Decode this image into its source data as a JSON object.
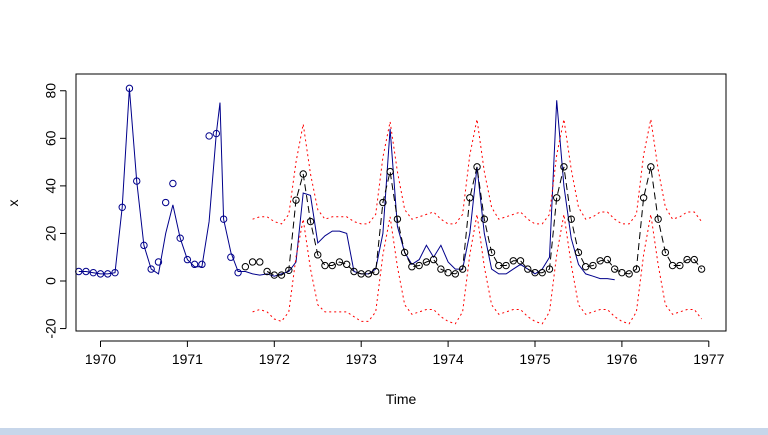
{
  "chart_data": {
    "type": "line",
    "title": "",
    "xlabel": "Time",
    "ylabel": "x",
    "xlim": [
      1969.75,
      1977.0
    ],
    "ylim": [
      -20,
      82
    ],
    "xticks": [
      "1970",
      "1971",
      "1972",
      "1973",
      "1974",
      "1975",
      "1976",
      "1977"
    ],
    "yticks": [
      "-20",
      "0",
      "20",
      "40",
      "60",
      "80"
    ],
    "grid": false,
    "legend": "none",
    "colors": {
      "observed_fitted": "#00008b",
      "forecast": "#000000",
      "interval": "#ff0000",
      "points": "#000000"
    },
    "series": [
      {
        "style": "points",
        "x": [
          1969.75,
          1969.833,
          1969.917,
          1970.0,
          1970.083,
          1970.167,
          1970.25,
          1970.333,
          1970.417,
          1970.5,
          1970.583,
          1970.667,
          1970.75,
          1970.833,
          1970.917,
          1971.0,
          1971.083,
          1971.167,
          1971.25,
          1971.333,
          1971.417,
          1971.5,
          1971.583,
          1971.667,
          1971.75,
          1971.833,
          1971.917,
          1972.0,
          1972.083,
          1972.167,
          1972.25,
          1972.333,
          1972.417,
          1972.5,
          1972.583,
          1972.667,
          1972.75,
          1972.833,
          1972.917,
          1973.0,
          1973.083,
          1973.167,
          1973.25,
          1973.333,
          1973.417,
          1973.5,
          1973.583,
          1973.667,
          1973.75,
          1973.833,
          1973.917,
          1974.0,
          1974.083,
          1974.167,
          1974.25,
          1974.333,
          1974.417,
          1974.5,
          1974.583,
          1974.667,
          1974.75,
          1974.833,
          1974.917,
          1975.0,
          1975.083,
          1975.167,
          1975.25,
          1975.333,
          1975.417,
          1975.5,
          1975.583,
          1975.667,
          1975.75,
          1975.833,
          1975.917,
          1976.0,
          1976.083,
          1976.167,
          1976.25,
          1976.333,
          1976.417,
          1976.5,
          1976.583,
          1976.667,
          1976.75,
          1976.833,
          1976.917
        ],
        "values": [
          4,
          4,
          3.5,
          3,
          3,
          3.5,
          31,
          81,
          42,
          15,
          5,
          8,
          33,
          41,
          18,
          9,
          7,
          7,
          61,
          62,
          26,
          10,
          3.5,
          6,
          8,
          8,
          4,
          2.5,
          2.5,
          4.5,
          34,
          45,
          25,
          11,
          6.5,
          6.5,
          8,
          7,
          4,
          3,
          3,
          4,
          33,
          46,
          26,
          12,
          6,
          6.5,
          8,
          9,
          5,
          3.5,
          3,
          5,
          35,
          48,
          26,
          12,
          6.5,
          6.5,
          8.5,
          8.5,
          5,
          3.5,
          3.5,
          5,
          35,
          48,
          26,
          12,
          6,
          6.5,
          8.5,
          9,
          5,
          3.5,
          3,
          5,
          35,
          48,
          26,
          12,
          6.5,
          6.5,
          9,
          9,
          5
        ]
      },
      {
        "name": "",
        "style": "solid",
        "color": "#00008b",
        "x": [
          1969.75,
          1969.833,
          1969.917,
          1970.0,
          1970.083,
          1970.167,
          1970.25,
          1970.333,
          1970.417,
          1970.5,
          1970.583,
          1970.667,
          1970.75,
          1970.833,
          1970.917,
          1971.0,
          1971.083,
          1971.167,
          1971.25,
          1971.333,
          1971.375,
          1971.417,
          1971.5,
          1971.583,
          1971.667,
          1971.75,
          1971.833,
          1971.917,
          1972.0,
          1972.083,
          1972.167,
          1972.25,
          1972.333,
          1972.417,
          1972.5,
          1972.583,
          1972.667,
          1972.75,
          1972.833,
          1972.917,
          1973.0,
          1973.083,
          1973.167,
          1973.25,
          1973.333,
          1973.417,
          1973.5,
          1973.583,
          1973.667,
          1973.75,
          1973.833,
          1973.917,
          1974.0,
          1974.083,
          1974.167,
          1974.25,
          1974.333,
          1974.417,
          1974.5,
          1974.583,
          1974.667,
          1974.75,
          1974.833,
          1974.917,
          1975.0,
          1975.083,
          1975.167,
          1975.25,
          1975.333,
          1975.417,
          1975.5,
          1975.583,
          1975.667,
          1975.75,
          1975.833,
          1975.917
        ],
        "values": [
          4,
          4,
          3.5,
          3,
          3,
          3.5,
          31,
          81,
          42,
          15,
          5,
          3,
          20,
          32,
          18,
          9,
          6,
          6,
          25,
          62,
          75,
          26,
          12,
          4,
          4,
          3,
          2.5,
          3,
          2,
          3,
          4,
          8,
          37,
          36,
          16,
          19,
          21,
          21,
          20,
          4,
          3,
          3,
          5,
          20,
          64,
          23,
          12,
          7,
          9,
          15,
          10,
          15,
          8,
          5,
          5,
          20,
          48,
          20,
          5,
          3,
          3,
          5,
          7,
          5,
          3,
          5,
          10,
          76,
          40,
          18,
          7,
          3,
          2,
          1,
          1,
          0.5
        ]
      },
      {
        "name": "",
        "style": "dashed",
        "color": "#000000",
        "x": [
          1971.917,
          1972.0,
          1972.083,
          1972.167,
          1972.25,
          1972.333,
          1972.417,
          1972.5,
          1972.583,
          1972.667,
          1972.75,
          1972.833,
          1972.917,
          1973.0,
          1973.083,
          1973.167,
          1973.25,
          1973.333,
          1973.417,
          1973.5,
          1973.583,
          1973.667,
          1973.75,
          1973.833,
          1973.917,
          1974.0,
          1974.083,
          1974.167,
          1974.25,
          1974.333,
          1974.417,
          1974.5,
          1974.583,
          1974.667,
          1974.75,
          1974.833,
          1974.917,
          1975.0,
          1975.083,
          1975.167,
          1975.25,
          1975.333,
          1975.417,
          1975.5,
          1975.583,
          1975.667,
          1975.75,
          1975.833,
          1975.917,
          1976.0,
          1976.083,
          1976.167,
          1976.25,
          1976.333,
          1976.417,
          1976.5,
          1976.583,
          1976.667,
          1976.75,
          1976.833,
          1976.917
        ],
        "values": [
          4,
          2.5,
          2.5,
          4.5,
          34,
          45,
          25,
          11,
          6.5,
          6.5,
          8,
          7,
          4,
          3,
          3,
          4,
          33,
          46,
          26,
          12,
          6,
          6.5,
          8,
          9,
          5,
          3.5,
          3,
          5,
          35,
          48,
          26,
          12,
          6.5,
          6.5,
          8.5,
          8.5,
          5,
          3.5,
          3.5,
          5,
          35,
          48,
          26,
          12,
          6,
          6.5,
          8.5,
          9,
          5,
          3.5,
          3,
          5,
          35,
          48,
          26,
          12,
          6.5,
          6.5,
          9,
          9,
          5
        ]
      },
      {
        "name": "",
        "style": "dotted",
        "color": "#ff0000",
        "x": [
          1971.75,
          1971.833,
          1971.917,
          1972.0,
          1972.083,
          1972.167,
          1972.25,
          1972.333,
          1972.417,
          1972.5,
          1972.583,
          1972.667,
          1972.75,
          1972.833,
          1972.917,
          1973.0,
          1973.083,
          1973.167,
          1973.25,
          1973.333,
          1973.417,
          1973.5,
          1973.583,
          1973.667,
          1973.75,
          1973.833,
          1973.917,
          1974.0,
          1974.083,
          1974.167,
          1974.25,
          1974.333,
          1974.417,
          1974.5,
          1974.583,
          1974.667,
          1974.75,
          1974.833,
          1974.917,
          1975.0,
          1975.083,
          1975.167,
          1975.25,
          1975.333,
          1975.417,
          1975.5,
          1975.583,
          1975.667,
          1975.75,
          1975.833,
          1975.917,
          1976.0,
          1976.083,
          1976.167,
          1976.25,
          1976.333,
          1976.417,
          1976.5,
          1976.583,
          1976.667,
          1976.75,
          1976.833,
          1976.917
        ],
        "values": [
          26,
          27,
          27,
          25,
          24,
          28,
          50,
          66,
          45,
          30,
          26,
          27,
          27,
          27,
          25,
          24,
          24,
          28,
          52,
          67,
          46,
          30,
          26,
          27,
          28,
          29,
          26,
          24,
          24,
          28,
          53,
          68,
          46,
          31,
          26,
          27,
          28,
          29,
          26,
          24,
          24,
          28,
          53,
          68,
          47,
          31,
          26,
          27,
          29,
          29,
          26,
          24,
          24,
          28,
          53,
          68,
          47,
          31,
          26,
          27,
          29,
          29,
          25
        ]
      },
      {
        "name": "",
        "style": "dotted",
        "color": "#ff0000",
        "x": [
          1971.75,
          1971.833,
          1971.917,
          1972.0,
          1972.083,
          1972.167,
          1972.25,
          1972.333,
          1972.417,
          1972.5,
          1972.583,
          1972.667,
          1972.75,
          1972.833,
          1972.917,
          1973.0,
          1973.083,
          1973.167,
          1973.25,
          1973.333,
          1973.417,
          1973.5,
          1973.583,
          1973.667,
          1973.75,
          1973.833,
          1973.917,
          1974.0,
          1974.083,
          1974.167,
          1974.25,
          1974.333,
          1974.417,
          1974.5,
          1974.583,
          1974.667,
          1974.75,
          1974.833,
          1974.917,
          1975.0,
          1975.083,
          1975.167,
          1975.25,
          1975.333,
          1975.417,
          1975.5,
          1975.583,
          1975.667,
          1975.75,
          1975.833,
          1975.917,
          1976.0,
          1976.083,
          1976.167,
          1976.25,
          1976.333,
          1976.417,
          1976.5,
          1976.583,
          1976.667,
          1976.75,
          1976.833,
          1976.917
        ],
        "values": [
          -13,
          -12,
          -13,
          -16,
          -17,
          -13,
          10,
          26,
          5,
          -10,
          -13,
          -13,
          -13,
          -13,
          -15,
          -17,
          -17,
          -13,
          11,
          27,
          6,
          -10,
          -14,
          -13,
          -12,
          -12,
          -15,
          -17,
          -18,
          -13,
          11,
          28,
          6,
          -10,
          -14,
          -13,
          -12,
          -12,
          -15,
          -17,
          -18,
          -13,
          11,
          28,
          7,
          -10,
          -14,
          -13,
          -12,
          -12,
          -15,
          -17,
          -18,
          -13,
          11,
          28,
          7,
          -10,
          -14,
          -13,
          -12,
          -12,
          -16
        ]
      }
    ]
  }
}
